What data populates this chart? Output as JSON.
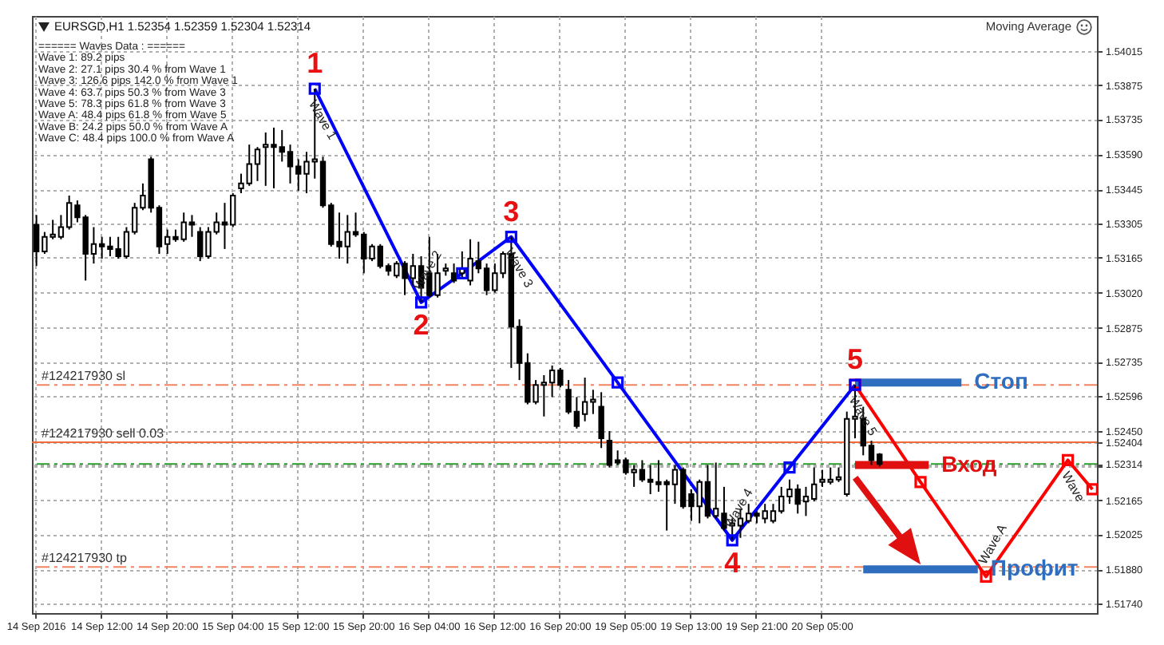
{
  "chart_data": {
    "type": "candlestick",
    "title": "EURSGD,H1  1.52354 1.52359 1.52304 1.52314",
    "subtitle": "Moving Average",
    "color": "#000000",
    "categories": [
      "14 Sep 2016",
      null,
      null,
      null,
      null,
      null,
      null,
      null,
      "14 Sep 12:00",
      null,
      null,
      null,
      null,
      null,
      null,
      null,
      "14 Sep 20:00",
      null,
      null,
      null,
      null,
      null,
      null,
      null,
      "15 Sep 04:00",
      null,
      null,
      null,
      null,
      null,
      null,
      null,
      "15 Sep 12:00",
      null,
      null,
      null,
      null,
      null,
      null,
      null,
      "15 Sep 20:00",
      null,
      null,
      null,
      null,
      null,
      null,
      null,
      "16 Sep 04:00",
      null,
      null,
      null,
      null,
      null,
      null,
      null,
      "16 Sep 12:00",
      null,
      null,
      null,
      null,
      null,
      null,
      null,
      "16 Sep 20:00",
      null,
      null,
      null,
      null,
      null,
      null,
      null,
      "19 Sep 05:00",
      null,
      null,
      null,
      null,
      null,
      null,
      null,
      "19 Sep 13:00",
      null,
      null,
      null,
      null,
      null,
      null,
      null,
      "19 Sep 21:00",
      null,
      null,
      null,
      null,
      null,
      null,
      null,
      "20 Sep 05:00",
      null,
      null,
      null,
      null,
      null,
      null,
      null,
      null,
      null,
      null,
      null,
      null,
      null,
      null,
      null,
      null,
      null,
      null,
      null,
      null,
      null,
      null,
      null,
      null,
      null,
      null,
      null,
      null,
      null,
      null,
      null,
      null,
      null
    ],
    "ohlc": [
      [
        1.533,
        1.5334,
        1.5313,
        1.5319
      ],
      [
        1.5319,
        1.5327,
        1.5318,
        1.5325
      ],
      [
        1.5325,
        1.5332,
        1.5324,
        1.5326
      ],
      [
        1.5325,
        1.5334,
        1.5324,
        1.5329
      ],
      [
        1.5329,
        1.5342,
        1.5328,
        1.5339
      ],
      [
        1.5338,
        1.534,
        1.5331,
        1.5333
      ],
      [
        1.5333,
        1.5334,
        1.5307,
        1.5318
      ],
      [
        1.5318,
        1.5329,
        1.5314,
        1.5322
      ],
      [
        1.5322,
        1.5325,
        1.5316,
        1.5321
      ],
      [
        1.5321,
        1.5325,
        1.5317,
        1.532
      ],
      [
        1.532,
        1.5325,
        1.5316,
        1.5317
      ],
      [
        1.5317,
        1.5329,
        1.5316,
        1.5327
      ],
      [
        1.5327,
        1.5339,
        1.5326,
        1.5337
      ],
      [
        1.5337,
        1.5347,
        1.5336,
        1.5342
      ],
      [
        1.5357,
        1.5358,
        1.5335,
        1.5337
      ],
      [
        1.5337,
        1.5338,
        1.5318,
        1.5321
      ],
      [
        1.5322,
        1.5328,
        1.5318,
        1.5325
      ],
      [
        1.5325,
        1.5328,
        1.5323,
        1.5324
      ],
      [
        1.5324,
        1.5335,
        1.5323,
        1.5331
      ],
      [
        1.5331,
        1.5334,
        1.5325,
        1.533
      ],
      [
        1.5327,
        1.5329,
        1.5315,
        1.5317
      ],
      [
        1.5317,
        1.5329,
        1.5316,
        1.5327
      ],
      [
        1.5327,
        1.5335,
        1.5326,
        1.5331
      ],
      [
        1.5331,
        1.5339,
        1.532,
        1.533
      ],
      [
        1.533,
        1.5343,
        1.5329,
        1.5342
      ],
      [
        1.5345,
        1.5351,
        1.5343,
        1.5347
      ],
      [
        1.5347,
        1.5363,
        1.5346,
        1.5355
      ],
      [
        1.5355,
        1.5362,
        1.5348,
        1.5361
      ],
      [
        1.5362,
        1.5368,
        1.5346,
        1.5363
      ],
      [
        1.5363,
        1.537,
        1.5345,
        1.5362
      ],
      [
        1.5362,
        1.5369,
        1.5356,
        1.536
      ],
      [
        1.536,
        1.5363,
        1.5347,
        1.5354
      ],
      [
        1.5354,
        1.5357,
        1.5344,
        1.5351
      ],
      [
        1.5351,
        1.536,
        1.5343,
        1.5356
      ],
      [
        1.5356,
        1.5386,
        1.5349,
        1.5357
      ],
      [
        1.5356,
        1.5358,
        1.5337,
        1.5338
      ],
      [
        1.5338,
        1.5339,
        1.5321,
        1.5322
      ],
      [
        1.5323,
        1.5335,
        1.5316,
        1.5321
      ],
      [
        1.5321,
        1.5334,
        1.5314,
        1.5327
      ],
      [
        1.5327,
        1.5335,
        1.5325,
        1.5326
      ],
      [
        1.5326,
        1.5327,
        1.531,
        1.5316
      ],
      [
        1.5316,
        1.5322,
        1.5315,
        1.5321
      ],
      [
        1.5321,
        1.5322,
        1.5312,
        1.5313
      ],
      [
        1.5313,
        1.5314,
        1.5309,
        1.5311
      ],
      [
        1.5309,
        1.5315,
        1.5308,
        1.5314
      ],
      [
        1.5314,
        1.5315,
        1.5301,
        1.5308
      ],
      [
        1.5308,
        1.5318,
        1.5305,
        1.5313
      ],
      [
        1.5313,
        1.5317,
        1.5298,
        1.5304
      ],
      [
        1.531,
        1.5325,
        1.53,
        1.5301
      ],
      [
        1.5301,
        1.5318,
        1.53,
        1.531
      ],
      [
        1.5311,
        1.5314,
        1.5309,
        1.5312
      ],
      [
        1.531,
        1.5314,
        1.5306,
        1.5307
      ],
      [
        1.531,
        1.5319,
        1.5308,
        1.5312
      ],
      [
        1.5307,
        1.5324,
        1.5305,
        1.5316
      ],
      [
        1.5315,
        1.5323,
        1.531,
        1.5312
      ],
      [
        1.5312,
        1.5314,
        1.5301,
        1.5303
      ],
      [
        1.5303,
        1.5314,
        1.5302,
        1.531
      ],
      [
        1.531,
        1.5319,
        1.5308,
        1.5318
      ],
      [
        1.5318,
        1.5325,
        1.5271,
        1.5288
      ],
      [
        1.5288,
        1.5291,
        1.5266,
        1.5273
      ],
      [
        1.5273,
        1.5277,
        1.5256,
        1.5257
      ],
      [
        1.5257,
        1.5266,
        1.5256,
        1.5264
      ],
      [
        1.5264,
        1.5268,
        1.5251,
        1.5265
      ],
      [
        1.5265,
        1.5272,
        1.5259,
        1.527
      ],
      [
        1.527,
        1.5271,
        1.5263,
        1.5264
      ],
      [
        1.5262,
        1.5266,
        1.5252,
        1.5253
      ],
      [
        1.5253,
        1.5259,
        1.5246,
        1.5247
      ],
      [
        1.5252,
        1.5267,
        1.5249,
        1.5257
      ],
      [
        1.5257,
        1.5262,
        1.5252,
        1.5258
      ],
      [
        1.5255,
        1.5261,
        1.5238,
        1.5242
      ],
      [
        1.5241,
        1.5245,
        1.523,
        1.5231
      ],
      [
        1.5233,
        1.5237,
        1.5231,
        1.5232
      ],
      [
        1.5233,
        1.5234,
        1.5227,
        1.5228
      ],
      [
        1.5228,
        1.5231,
        1.5222,
        1.5229
      ],
      [
        1.5229,
        1.5233,
        1.5224,
        1.5225
      ],
      [
        1.5225,
        1.5231,
        1.5219,
        1.5224
      ],
      [
        1.5224,
        1.5233,
        1.522,
        1.5223
      ],
      [
        1.5224,
        1.5225,
        1.5204,
        1.5223
      ],
      [
        1.5223,
        1.5231,
        1.5215,
        1.5229
      ],
      [
        1.5229,
        1.523,
        1.5213,
        1.5214
      ],
      [
        1.5219,
        1.5221,
        1.5208,
        1.5214
      ],
      [
        1.5214,
        1.5225,
        1.5207,
        1.5224
      ],
      [
        1.5224,
        1.5231,
        1.5209,
        1.521
      ],
      [
        1.521,
        1.5232,
        1.5209,
        1.5213
      ],
      [
        1.5211,
        1.5222,
        1.5204,
        1.5205
      ],
      [
        1.5206,
        1.5209,
        1.52,
        1.5207
      ],
      [
        1.5206,
        1.5213,
        1.5201,
        1.5209
      ],
      [
        1.5208,
        1.5215,
        1.5207,
        1.5211
      ],
      [
        1.5211,
        1.5212,
        1.5207,
        1.521
      ],
      [
        1.5209,
        1.5215,
        1.5207,
        1.5212
      ],
      [
        1.5208,
        1.5215,
        1.5207,
        1.5212
      ],
      [
        1.5212,
        1.5222,
        1.5211,
        1.5218
      ],
      [
        1.5218,
        1.5225,
        1.5215,
        1.5221
      ],
      [
        1.5221,
        1.5223,
        1.5211,
        1.5215
      ],
      [
        1.5216,
        1.5222,
        1.521,
        1.5218
      ],
      [
        1.5217,
        1.523,
        1.5216,
        1.5223
      ],
      [
        1.5224,
        1.5229,
        1.5222,
        1.5225
      ],
      [
        1.5224,
        1.523,
        1.5223,
        1.5225
      ],
      [
        1.5225,
        1.523,
        1.5224,
        1.5226
      ],
      [
        1.5219,
        1.5253,
        1.5218,
        1.525
      ],
      [
        1.525,
        1.5264,
        1.5242,
        1.5251
      ],
      [
        1.525,
        1.5255,
        1.5235,
        1.5239
      ],
      [
        1.5239,
        1.5241,
        1.5231,
        1.5233
      ],
      [
        1.52354,
        1.52359,
        1.52304,
        1.52314
      ],
      null,
      null,
      null,
      null,
      null,
      null,
      null,
      null,
      null,
      null,
      null,
      null,
      null,
      null,
      null,
      null,
      null,
      null,
      null,
      null,
      null,
      null,
      null,
      null,
      null,
      null
    ],
    "series": [
      {
        "type": "line",
        "color": "#0000ff",
        "marker": "square",
        "values": [
          null,
          null,
          null,
          null,
          null,
          null,
          null,
          null,
          null,
          null,
          null,
          null,
          null,
          null,
          null,
          null,
          null,
          null,
          null,
          null,
          null,
          null,
          null,
          null,
          null,
          null,
          null,
          null,
          null,
          null,
          null,
          null,
          null,
          null,
          1.5386,
          null,
          null,
          null,
          null,
          null,
          null,
          null,
          null,
          null,
          null,
          null,
          null,
          1.5298,
          null,
          null,
          null,
          null,
          1.531,
          null,
          null,
          null,
          null,
          null,
          1.5325,
          null,
          null,
          null,
          null,
          null,
          null,
          null,
          null,
          null,
          null,
          null,
          null,
          1.5265,
          null,
          null,
          null,
          null,
          null,
          null,
          null,
          null,
          null,
          null,
          null,
          null,
          null,
          1.52,
          null,
          null,
          null,
          null,
          null,
          null,
          1.523,
          null,
          null,
          null,
          null,
          null,
          null,
          null,
          1.5264,
          null,
          null,
          null,
          null,
          null,
          null,
          null,
          null,
          null,
          null,
          null,
          null,
          null,
          null,
          null,
          null,
          null,
          null,
          null,
          null,
          null,
          null,
          null,
          null,
          null,
          null,
          null,
          null,
          null
        ]
      },
      {
        "type": "line",
        "color": "#ff0000",
        "marker": "square",
        "values": [
          null,
          null,
          null,
          null,
          null,
          null,
          null,
          null,
          null,
          null,
          null,
          null,
          null,
          null,
          null,
          null,
          null,
          null,
          null,
          null,
          null,
          null,
          null,
          null,
          null,
          null,
          null,
          null,
          null,
          null,
          null,
          null,
          null,
          null,
          null,
          null,
          null,
          null,
          null,
          null,
          null,
          null,
          null,
          null,
          null,
          null,
          null,
          null,
          null,
          null,
          null,
          null,
          null,
          null,
          null,
          null,
          null,
          null,
          null,
          null,
          null,
          null,
          null,
          null,
          null,
          null,
          null,
          null,
          null,
          null,
          null,
          null,
          null,
          null,
          null,
          null,
          null,
          null,
          null,
          null,
          null,
          null,
          null,
          null,
          null,
          null,
          null,
          null,
          null,
          null,
          null,
          null,
          null,
          null,
          null,
          null,
          null,
          null,
          null,
          null,
          1.5264,
          null,
          null,
          null,
          null,
          null,
          null,
          null,
          1.5224,
          null,
          null,
          null,
          null,
          null,
          null,
          null,
          1.5185,
          null,
          null,
          null,
          null,
          null,
          null,
          null,
          null,
          null,
          1.5233,
          null,
          null,
          1.5221
        ]
      },
      {
        "type": "line",
        "name": "Стоп",
        "color": "#2f6ebf",
        "values": [
          null,
          null,
          null,
          null,
          null,
          null,
          null,
          null,
          null,
          null,
          null,
          null,
          null,
          null,
          null,
          null,
          null,
          null,
          null,
          null,
          null,
          null,
          null,
          null,
          null,
          null,
          null,
          null,
          null,
          null,
          null,
          null,
          null,
          null,
          null,
          null,
          null,
          null,
          null,
          null,
          null,
          null,
          null,
          null,
          null,
          null,
          null,
          null,
          null,
          null,
          null,
          null,
          null,
          null,
          null,
          null,
          null,
          null,
          null,
          null,
          null,
          null,
          null,
          null,
          null,
          null,
          null,
          null,
          null,
          null,
          null,
          null,
          null,
          null,
          null,
          null,
          null,
          null,
          null,
          null,
          null,
          null,
          null,
          null,
          null,
          null,
          null,
          null,
          null,
          null,
          null,
          null,
          null,
          null,
          null,
          null,
          null,
          null,
          null,
          null,
          1.5265,
          1.5265,
          1.5265,
          1.5265,
          1.5265,
          1.5265,
          1.5265,
          1.5265,
          1.5265,
          1.5265,
          1.5265,
          1.5265,
          1.5265,
          1.5265,
          null,
          null,
          null,
          null,
          null,
          null,
          null,
          null,
          null,
          null,
          null,
          null,
          null,
          null,
          null,
          null
        ]
      },
      {
        "type": "line",
        "name": "Вход",
        "color": "#e01010",
        "values": [
          null,
          null,
          null,
          null,
          null,
          null,
          null,
          null,
          null,
          null,
          null,
          null,
          null,
          null,
          null,
          null,
          null,
          null,
          null,
          null,
          null,
          null,
          null,
          null,
          null,
          null,
          null,
          null,
          null,
          null,
          null,
          null,
          null,
          null,
          null,
          null,
          null,
          null,
          null,
          null,
          null,
          null,
          null,
          null,
          null,
          null,
          null,
          null,
          null,
          null,
          null,
          null,
          null,
          null,
          null,
          null,
          null,
          null,
          null,
          null,
          null,
          null,
          null,
          null,
          null,
          null,
          null,
          null,
          null,
          null,
          null,
          null,
          null,
          null,
          null,
          null,
          null,
          null,
          null,
          null,
          null,
          null,
          null,
          null,
          null,
          null,
          null,
          null,
          null,
          null,
          null,
          null,
          null,
          null,
          null,
          null,
          null,
          null,
          null,
          null,
          1.5231,
          1.5231,
          1.5231,
          1.5231,
          1.5231,
          1.5231,
          1.5231,
          1.5231,
          1.5231,
          1.5231,
          null,
          null,
          null,
          null,
          null,
          null,
          null,
          null,
          null,
          null,
          null,
          null,
          null,
          null,
          null,
          null,
          null,
          null,
          null,
          null
        ]
      },
      {
        "type": "line",
        "name": "Профит",
        "color": "#2f6ebf",
        "values": [
          null,
          null,
          null,
          null,
          null,
          null,
          null,
          null,
          null,
          null,
          null,
          null,
          null,
          null,
          null,
          null,
          null,
          null,
          null,
          null,
          null,
          null,
          null,
          null,
          null,
          null,
          null,
          null,
          null,
          null,
          null,
          null,
          null,
          null,
          null,
          null,
          null,
          null,
          null,
          null,
          null,
          null,
          null,
          null,
          null,
          null,
          null,
          null,
          null,
          null,
          null,
          null,
          null,
          null,
          null,
          null,
          null,
          null,
          null,
          null,
          null,
          null,
          null,
          null,
          null,
          null,
          null,
          null,
          null,
          null,
          null,
          null,
          null,
          null,
          null,
          null,
          null,
          null,
          null,
          null,
          null,
          null,
          null,
          null,
          null,
          null,
          null,
          null,
          null,
          null,
          null,
          null,
          null,
          null,
          null,
          null,
          null,
          null,
          null,
          null,
          null,
          1.5188,
          1.5188,
          1.5188,
          1.5188,
          1.5188,
          1.5188,
          1.5188,
          1.5188,
          1.5188,
          1.5188,
          1.5188,
          1.5188,
          1.5188,
          1.5188,
          1.5188,
          null,
          null,
          null,
          null,
          null,
          null,
          null,
          null,
          null,
          null,
          null,
          null,
          null,
          null
        ]
      }
    ],
    "ylim": [
      1.517,
      1.5416
    ],
    "yticks": [
      {
        "value": 1.5174,
        "label": "1.51740"
      },
      {
        "value": 1.5188,
        "label": "1.51880"
      },
      1.52025,
      1.52165,
      {
        "value": 1.52305,
        "label": null
      },
      1.52314,
      1.52404,
      {
        "value": 1.5245,
        "label": "1.52450"
      },
      1.52596,
      1.52735,
      1.52875,
      {
        "value": 1.5302,
        "label": "1.53020"
      },
      1.53165,
      1.53305,
      1.53445,
      {
        "value": 1.5359,
        "label": "1.53590"
      },
      1.53735,
      1.53875,
      1.54015
    ],
    "grid": true,
    "ref_lines": [
      {
        "axis": "y",
        "value": 1.5264,
        "label": "#124217930 sl",
        "color": "#f4845f",
        "line_style": "dashed"
      },
      {
        "axis": "y",
        "value": 1.52404,
        "label": "#124217930 sell 0.03",
        "color": "#f06a3c",
        "line_style": "solid"
      },
      {
        "axis": "y",
        "value": 1.52314,
        "color": "#2e9a2e",
        "line_style": "dashed"
      },
      {
        "axis": "y",
        "value": 1.5189,
        "label": "#124217930 tp",
        "color": "#f4845f",
        "line_style": "dashed"
      }
    ],
    "annotations": [
      "====== Waves Data : ======",
      "Wave 1: 89.2 pips",
      "Wave 2: 27.1 pips 30.4 % from Wave 1",
      "Wave 3: 126.6 pips 142.0 % from Wave 1",
      "Wave 4: 63.7 pips 50.3 % from Wave 3",
      "Wave 5: 78.3 pips 61.8 % from Wave 3",
      "Wave A: 48.4 pips 61.8 % from Wave 5",
      "Wave B: 24.2 pips 50.0 % from Wave A",
      "Wave C: 48.4 pips 100.0 % from Wave A",
      {
        "text": "1",
        "y": 1.5386
      },
      {
        "text": "2",
        "y": 1.5298
      },
      {
        "text": "3",
        "y": 1.5325
      },
      {
        "text": "4",
        "y": 1.52
      },
      {
        "text": "5",
        "y": 1.5264
      },
      {
        "text": "Wave 1",
        "y": 1.5386
      },
      {
        "text": "Wave 2",
        "y": 1.5298
      },
      {
        "text": "Wave 3",
        "y": 1.5325
      },
      {
        "text": "Wave 4",
        "y": 1.52
      },
      {
        "text": "Wave 5",
        "y": 1.5264
      },
      {
        "text": "Wave A",
        "y": 1.5185
      },
      {
        "text": "Wave",
        "y": 1.5233
      }
    ]
  }
}
